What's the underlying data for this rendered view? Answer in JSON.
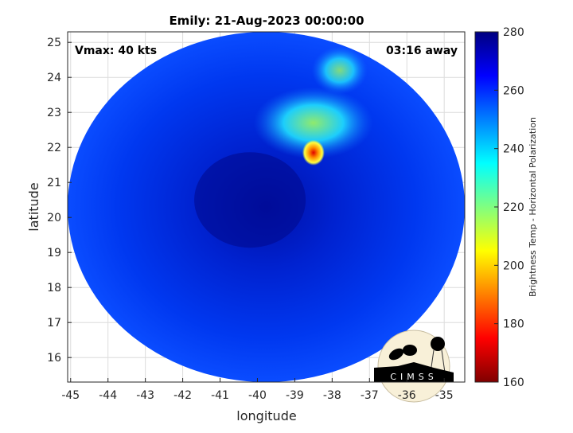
{
  "chart_data": {
    "type": "heatmap",
    "title": "Emily: 21-Aug-2023 00:00:00",
    "xlabel": "longitude",
    "ylabel": "latitude",
    "xlim": [
      -45.08,
      -34.45
    ],
    "ylim": [
      15.3,
      25.3
    ],
    "xticks": [
      -45,
      -44,
      -43,
      -42,
      -41,
      -40,
      -39,
      -38,
      -37,
      -36,
      -35
    ],
    "yticks": [
      16,
      17,
      18,
      19,
      20,
      21,
      22,
      23,
      24,
      25
    ],
    "grid": true,
    "colorbar": {
      "label": "Brightness Temp - Horizontal Polarization",
      "range": [
        160,
        280
      ],
      "ticks": [
        160,
        180,
        200,
        220,
        240,
        260,
        280
      ],
      "colormap": "jet"
    },
    "annotations": {
      "vmax": "Vmax: 40 kts",
      "time_away": "03:16 away"
    },
    "swath": {
      "center_lon": -39.7,
      "center_lat": 20.3,
      "background_tb": 262
    },
    "features": [
      {
        "name": "storm-center",
        "lon": -40.2,
        "lat": 20.5,
        "tb": 272
      },
      {
        "name": "convection-ne",
        "lon": -38.5,
        "lat": 22.7,
        "tb": 235
      },
      {
        "name": "convection-core",
        "lon": -38.5,
        "lat": 21.85,
        "tb": 185
      },
      {
        "name": "convection-north",
        "lon": -37.8,
        "lat": 24.2,
        "tb": 240
      }
    ]
  },
  "logo": {
    "text": "CIMSS"
  }
}
